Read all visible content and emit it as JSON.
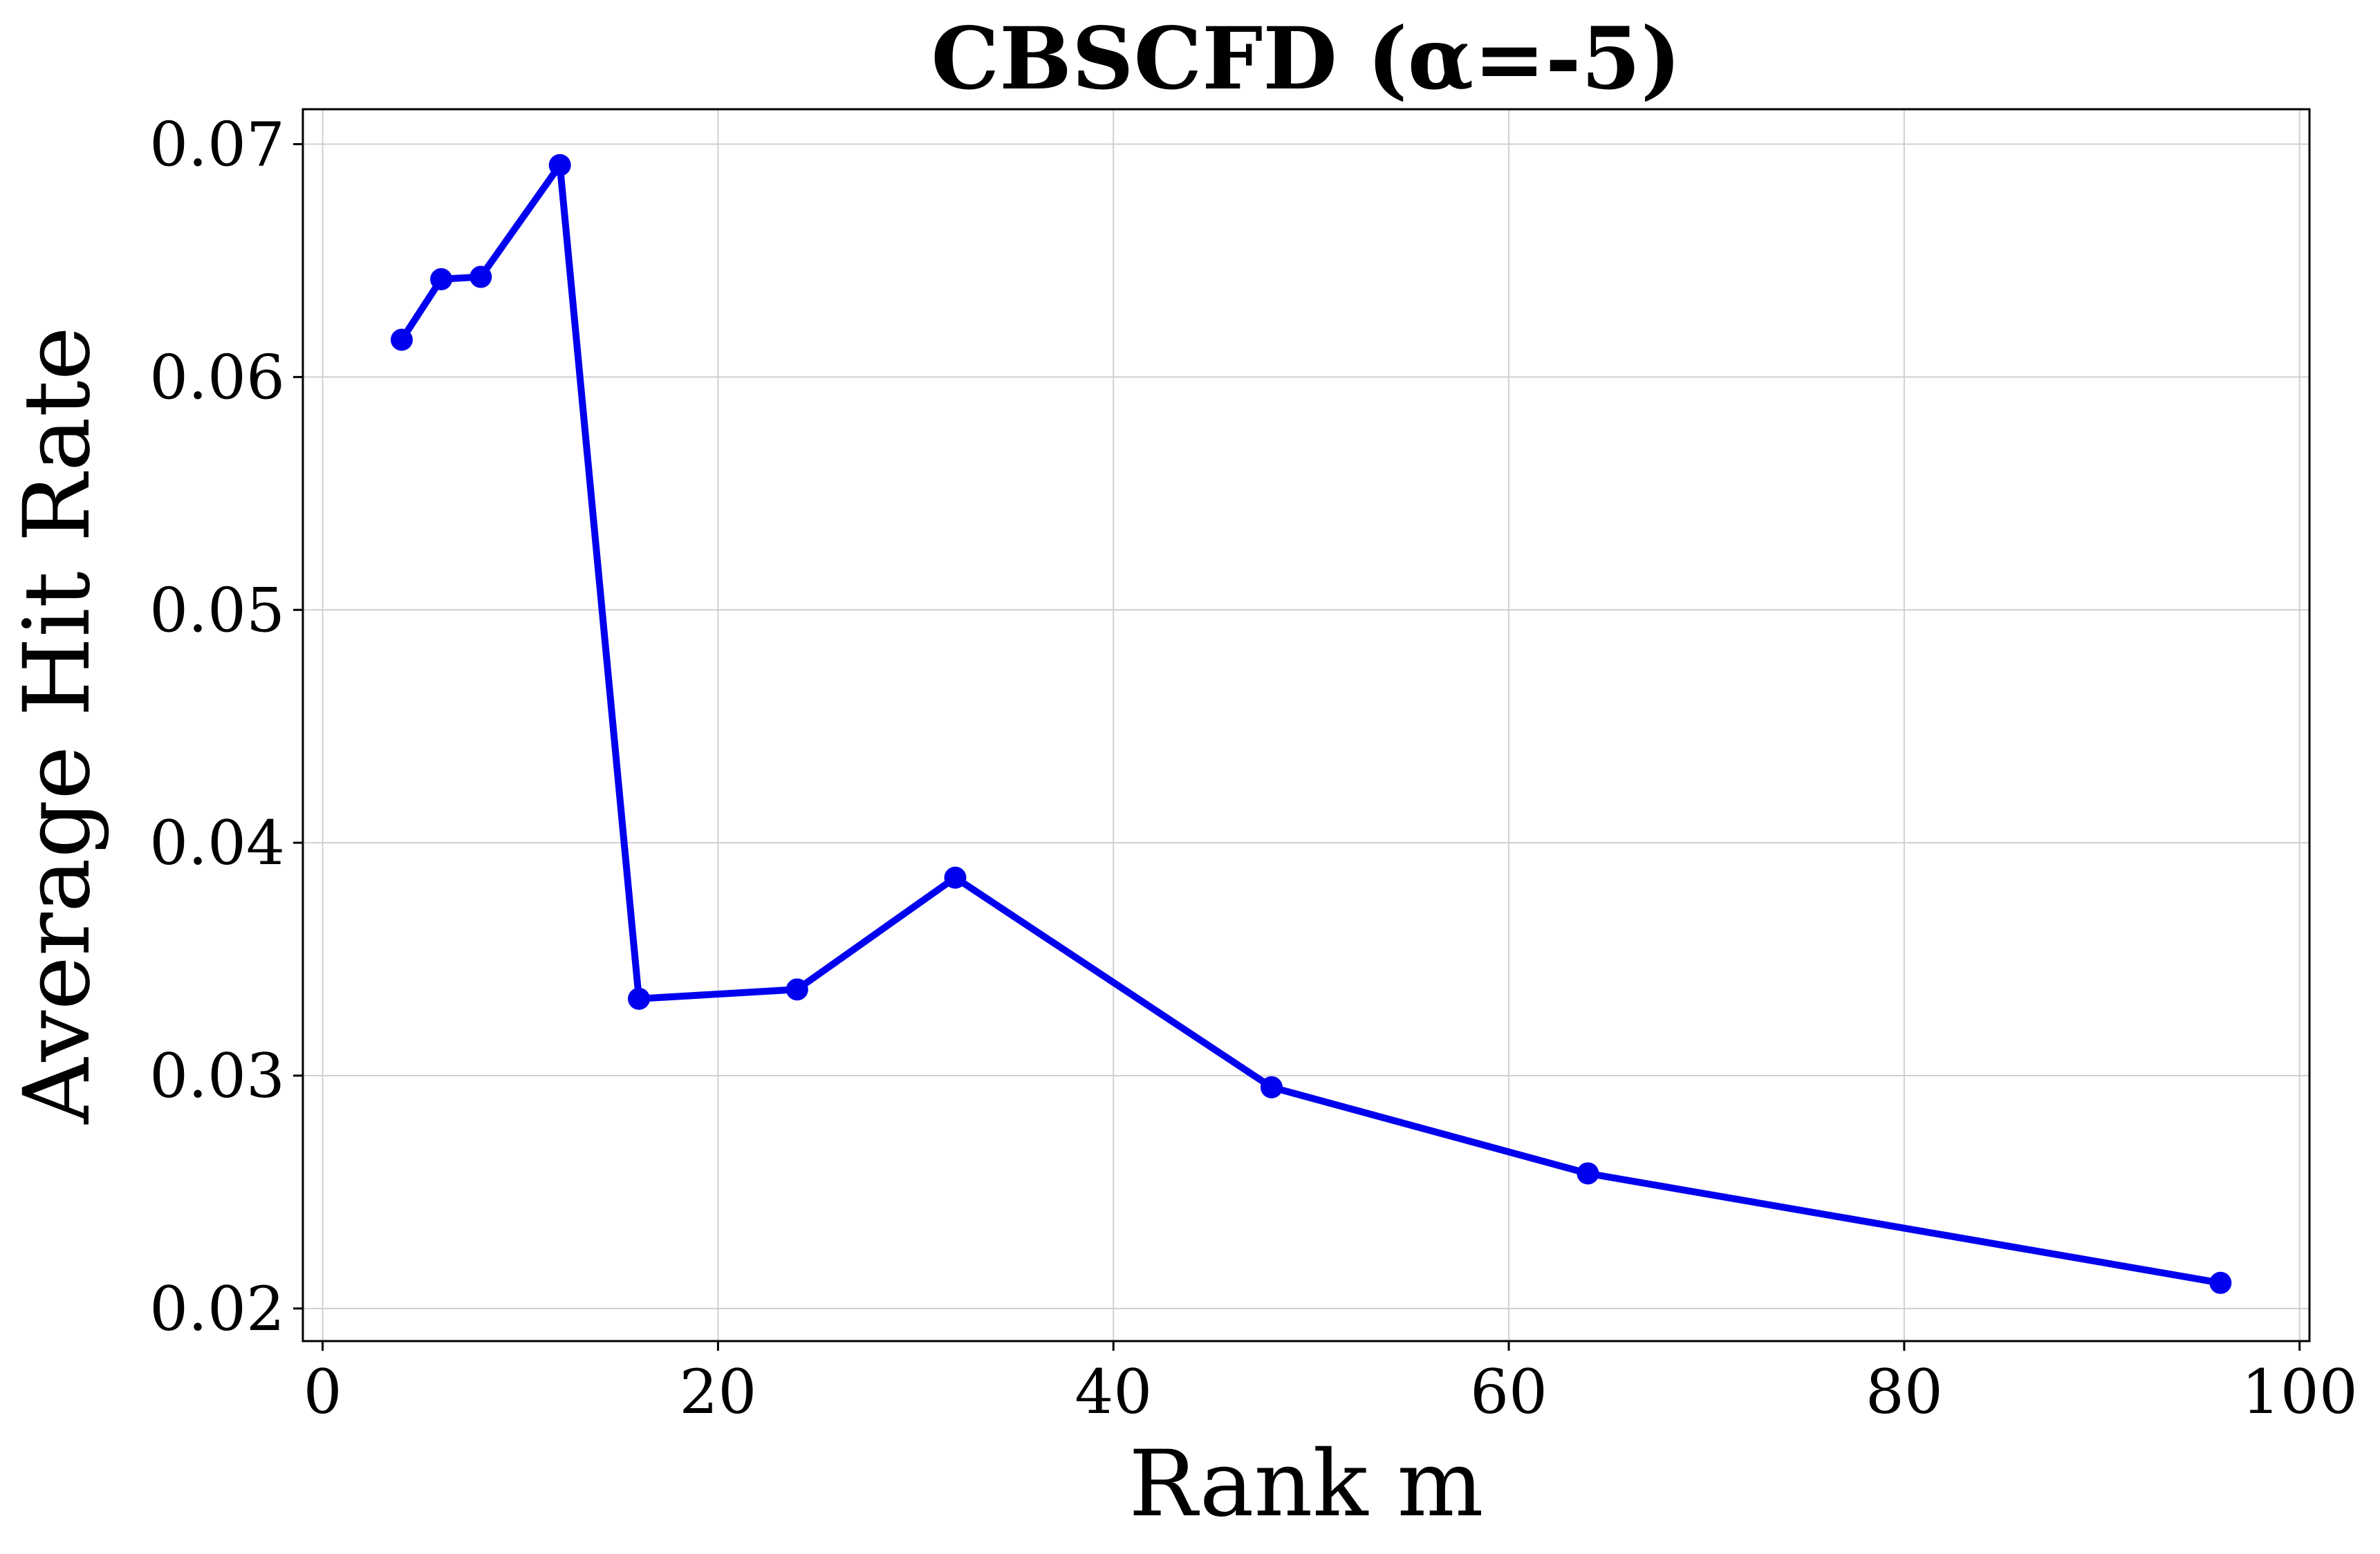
{
  "chart_data": {
    "type": "line",
    "title": "CBSCFD (α=-5)",
    "xlabel": "Rank m",
    "ylabel": "Average Hit Rate",
    "xlim": [
      -1,
      100.5
    ],
    "ylim": [
      0.0186,
      0.0715
    ],
    "xticks": [
      0,
      20,
      40,
      60,
      80,
      100
    ],
    "xtick_labels": [
      "0",
      "20",
      "40",
      "60",
      "80",
      "100"
    ],
    "yticks": [
      0.02,
      0.03,
      0.04,
      0.05,
      0.06,
      0.07
    ],
    "ytick_labels": [
      "0.02",
      "0.03",
      "0.04",
      "0.05",
      "0.06",
      "0.07"
    ],
    "grid": true,
    "series": [
      {
        "color": "#0000ee",
        "x": [
          4,
          6,
          8,
          12,
          16,
          24,
          32,
          48,
          64,
          96
        ],
        "y": [
          0.0616,
          0.0642,
          0.0643,
          0.0691,
          0.0333,
          0.0337,
          0.0385,
          0.0295,
          0.0258,
          0.0211
        ]
      }
    ]
  }
}
